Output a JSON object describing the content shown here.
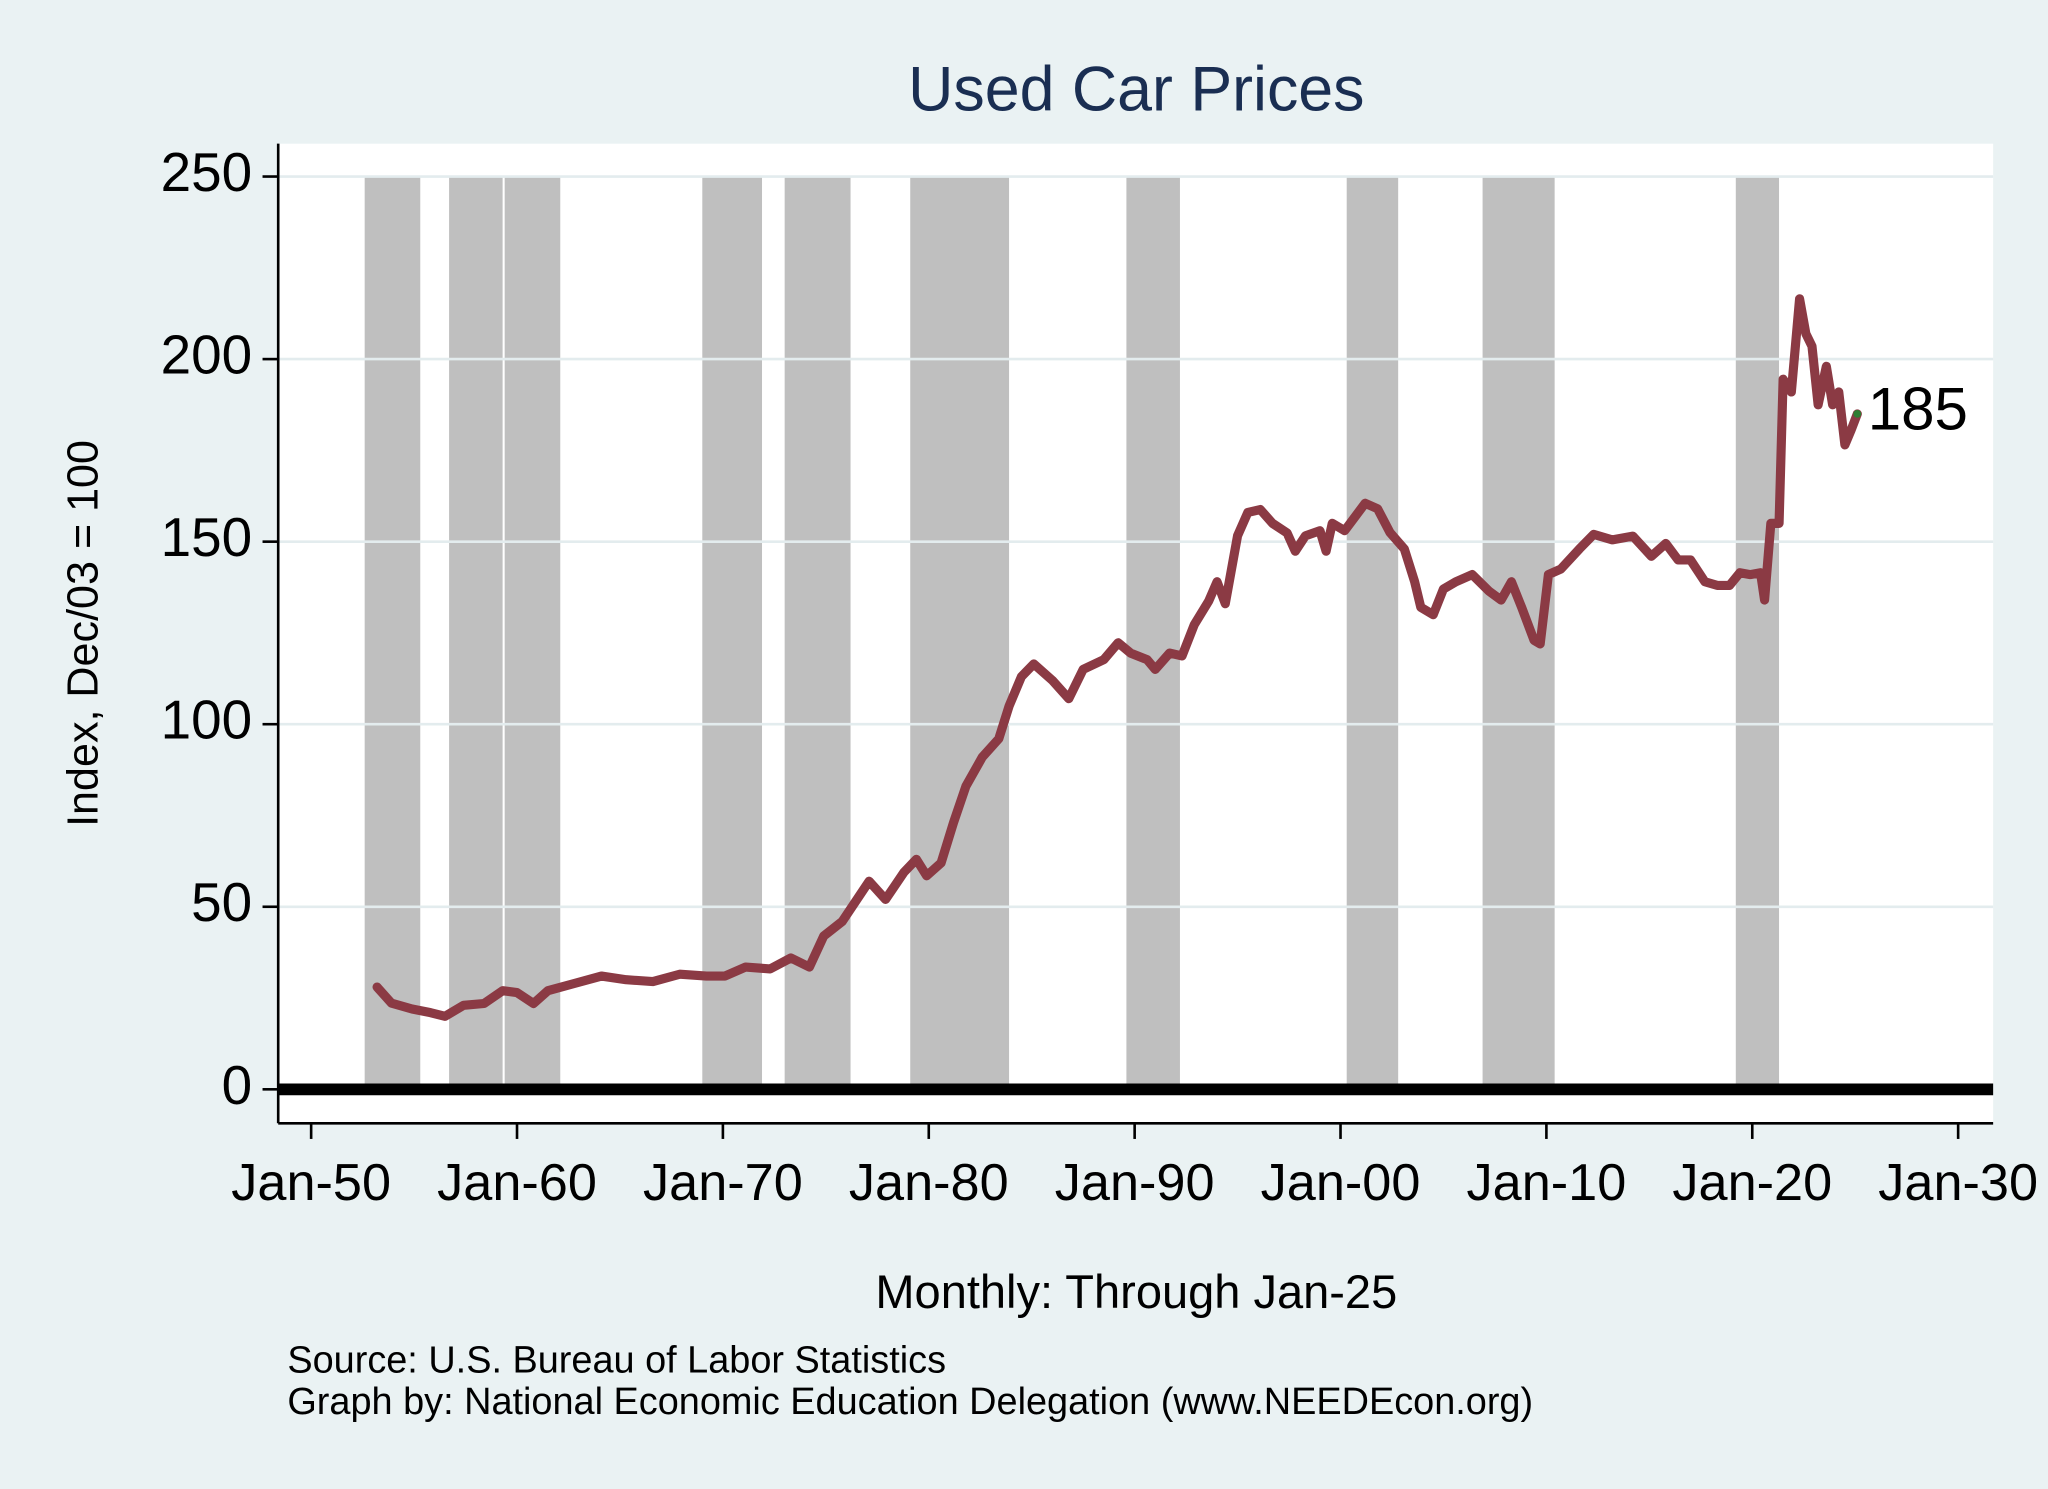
{
  "chart_data": {
    "type": "line",
    "title": "Used Car Prices",
    "ylabel": "Index, Dec/03 = 100",
    "xlabel": "Monthly: Through Jan-25",
    "notes": [
      "Source: U.S. Bureau of Labor Statistics",
      "Graph by: National Economic Education Delegation (www.NEEDEcon.org)"
    ],
    "color": "#8b3a44",
    "recession_color": "#bfbfbf",
    "grid": true,
    "x": [
      1953.2,
      1953.9,
      1954.9,
      1955.8,
      1956.5,
      1957.4,
      1958.4,
      1959.3,
      1960.0,
      1960.8,
      1961.5,
      1962.8,
      1964.1,
      1965.3,
      1966.6,
      1967.9,
      1969.2,
      1970.1,
      1971.1,
      1972.3,
      1973.3,
      1974.2,
      1974.9,
      1975.8,
      1977.1,
      1977.9,
      1978.8,
      1979.4,
      1979.9,
      1980.6,
      1981.2,
      1981.8,
      1982.6,
      1983.4,
      1983.9,
      1984.5,
      1985.1,
      1986.0,
      1986.8,
      1987.5,
      1988.5,
      1989.2,
      1989.8,
      1990.6,
      1991.0,
      1991.7,
      1992.3,
      1992.9,
      1993.6,
      1994.0,
      1994.4,
      1995.0,
      1995.5,
      1996.1,
      1996.7,
      1997.4,
      1997.8,
      1998.3,
      1999.0,
      1999.3,
      1999.6,
      2000.2,
      2001.2,
      2001.8,
      2002.4,
      2003.1,
      2003.6,
      2003.9,
      2004.5,
      2005.0,
      2005.6,
      2006.4,
      2007.2,
      2007.8,
      2008.3,
      2008.8,
      2009.4,
      2009.7,
      2010.1,
      2010.7,
      2011.6,
      2012.3,
      2013.2,
      2014.2,
      2015.1,
      2015.8,
      2016.4,
      2017.0,
      2017.7,
      2018.3,
      2018.9,
      2019.4,
      2019.9,
      2020.4,
      2020.6,
      2020.9,
      2021.3,
      2021.5,
      2021.9,
      2022.3,
      2022.6,
      2022.9,
      2023.2,
      2023.6,
      2023.9,
      2024.2,
      2024.5,
      2024.8,
      2025.1
    ],
    "values": [
      28,
      23.6,
      22,
      21,
      20,
      23,
      23.5,
      27,
      26.5,
      23.5,
      27,
      29,
      31,
      30,
      29.5,
      31.5,
      31,
      31,
      33.5,
      33,
      36,
      33.5,
      42,
      46,
      57,
      52,
      59.5,
      63,
      58.5,
      62,
      73,
      83,
      91,
      96,
      105,
      113,
      116.5,
      112,
      107,
      115,
      117.7,
      122.3,
      119.5,
      117.7,
      115,
      119.5,
      118.7,
      127.3,
      133.8,
      139,
      133,
      151.6,
      158,
      158.8,
      155,
      152.4,
      147.4,
      151.6,
      153,
      147.4,
      155,
      153,
      160.5,
      159,
      152.5,
      148,
      139,
      132,
      130,
      137,
      139,
      141,
      136.5,
      134,
      139,
      132,
      123,
      122,
      141,
      142.5,
      148,
      152,
      150.5,
      151.5,
      146,
      149.5,
      145,
      145,
      139,
      138,
      138,
      141.5,
      141,
      141.5,
      134,
      155,
      155,
      194.5,
      191,
      216.5,
      207,
      203.5,
      187.5,
      198,
      187.5,
      191,
      176.5,
      180.5,
      185
    ],
    "end_label": 185,
    "recessions": [
      [
        1952.6,
        1955.3
      ],
      [
        1956.7,
        1959.3
      ],
      [
        1959.4,
        1962.1
      ],
      [
        1969.0,
        1971.9
      ],
      [
        1973.0,
        1976.2
      ],
      [
        1979.1,
        1983.9
      ],
      [
        1989.6,
        1992.2
      ],
      [
        2000.3,
        2002.8
      ],
      [
        2006.9,
        2010.4
      ],
      [
        2019.2,
        2021.3
      ]
    ],
    "xlim": [
      1948.4,
      2031.7
    ],
    "ylim": [
      -9.3,
      259
    ],
    "yticks": [
      0,
      50,
      100,
      150,
      200,
      250
    ],
    "xticks": [
      {
        "value": 1950,
        "label": "Jan-50"
      },
      {
        "value": 1960,
        "label": "Jan-60"
      },
      {
        "value": 1970,
        "label": "Jan-70"
      },
      {
        "value": 1980,
        "label": "Jan-80"
      },
      {
        "value": 1990,
        "label": "Jan-90"
      },
      {
        "value": 2000,
        "label": "Jan-00"
      },
      {
        "value": 2010,
        "label": "Jan-10"
      },
      {
        "value": 2020,
        "label": "Jan-20"
      },
      {
        "value": 2030,
        "label": "Jan-30"
      }
    ]
  }
}
